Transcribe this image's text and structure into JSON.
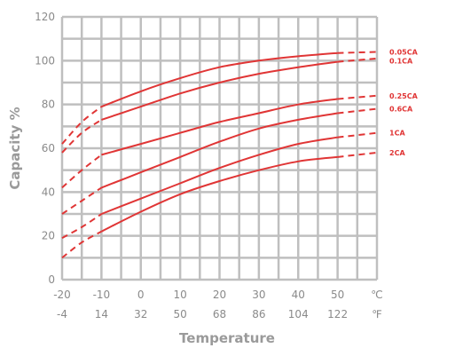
{
  "chart_data": {
    "type": "line",
    "title": "",
    "xlabel": "Temperature",
    "ylabel": "Capacity %",
    "xlim": [
      -20,
      60
    ],
    "ylim": [
      0,
      120
    ],
    "grid": true,
    "x_ticks": [
      -20,
      -10,
      0,
      10,
      20,
      30,
      40,
      50
    ],
    "x_tick_labels_c": [
      "-20",
      "-10",
      "0",
      "10",
      "20",
      "30",
      "40",
      "50"
    ],
    "x_tick_labels_f": [
      "-4",
      "14",
      "32",
      "50",
      "68",
      "86",
      "104",
      "122"
    ],
    "x_unit_c": "℃",
    "x_unit_f": "℉",
    "y_ticks": [
      0,
      20,
      40,
      60,
      80,
      100,
      120
    ],
    "y_tick_labels": [
      "0",
      "20",
      "40",
      "60",
      "80",
      "100",
      "120"
    ],
    "series_color": "#e03535",
    "grid_color": "#bfbfbf",
    "measured_range": [
      -10,
      50
    ],
    "series": [
      {
        "name": "0.05CA",
        "x": [
          -20,
          -15,
          -10,
          0,
          10,
          20,
          30,
          40,
          50,
          60
        ],
        "y": [
          62,
          72,
          79,
          86,
          92,
          97,
          100,
          102,
          103.5,
          104
        ]
      },
      {
        "name": "0.1CA",
        "x": [
          -20,
          -15,
          -10,
          0,
          10,
          20,
          30,
          40,
          50,
          60
        ],
        "y": [
          58,
          67,
          73,
          79,
          85,
          90,
          94,
          97,
          99.5,
          101
        ]
      },
      {
        "name": "0.25CA",
        "x": [
          -20,
          -15,
          -10,
          0,
          10,
          20,
          30,
          40,
          50,
          60
        ],
        "y": [
          42,
          50,
          57,
          62,
          67,
          72,
          76,
          80,
          82.5,
          84
        ]
      },
      {
        "name": "0.6CA",
        "x": [
          -20,
          -15,
          -10,
          0,
          10,
          20,
          30,
          40,
          50,
          60
        ],
        "y": [
          30,
          36,
          42,
          49,
          56,
          63,
          69,
          73,
          76,
          78
        ]
      },
      {
        "name": "1CA",
        "x": [
          -20,
          -15,
          -10,
          0,
          10,
          20,
          30,
          40,
          50,
          60
        ],
        "y": [
          19,
          24,
          30,
          37,
          44,
          51,
          57,
          62,
          65,
          67
        ]
      },
      {
        "name": "2CA",
        "x": [
          -20,
          -15,
          -10,
          0,
          10,
          20,
          30,
          40,
          50,
          60
        ],
        "y": [
          10,
          17,
          22,
          31,
          39,
          45,
          50,
          54,
          56,
          58
        ]
      }
    ]
  }
}
